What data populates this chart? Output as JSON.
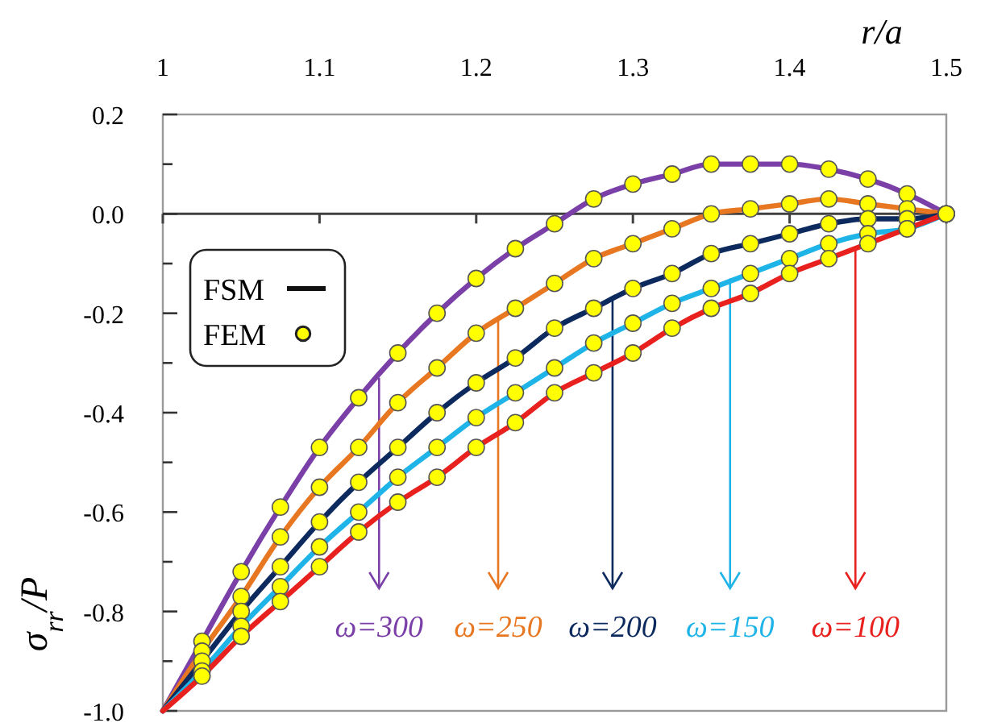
{
  "chart_data": {
    "type": "line",
    "xlabel": "r/a",
    "ylabel": "σ$_{rr}$/P",
    "xlim": [
      1,
      1.5
    ],
    "xticks": [
      1,
      1.1,
      1.2,
      1.3,
      1.4,
      1.5
    ],
    "ylim": [
      -1.0,
      0.2
    ],
    "yticks": [
      {
        "value": -1.0,
        "label": "-1.0"
      },
      {
        "value": -0.9,
        "label": null
      },
      {
        "value": -0.8,
        "label": "-0.8"
      },
      {
        "value": -0.7,
        "label": null
      },
      {
        "value": -0.6,
        "label": "-0.6"
      },
      {
        "value": -0.5,
        "label": null
      },
      {
        "value": -0.4,
        "label": "-0.4"
      },
      {
        "value": -0.3,
        "label": null
      },
      {
        "value": -0.2,
        "label": "-0.2"
      },
      {
        "value": -0.1,
        "label": null
      },
      {
        "value": 0.0,
        "label": "0.0"
      },
      {
        "value": 0.1,
        "label": null
      },
      {
        "value": 0.2,
        "label": "0.2"
      }
    ],
    "grid": false,
    "legend": "top left",
    "marker": "none",
    "line_style": "solid",
    "ref_lines": [
      {
        "axis": "y",
        "value": 0,
        "color": "#404040"
      }
    ],
    "x": [
      1,
      1.025,
      1.05,
      1.075,
      1.1,
      1.125,
      1.15,
      1.175,
      1.2,
      1.225,
      1.25,
      1.275,
      1.3,
      1.325,
      1.35,
      1.375,
      1.4,
      1.425,
      1.45,
      1.475,
      1.5
    ],
    "series": [
      {
        "color": "#7b3fa8",
        "values": [
          -1.0,
          -0.86,
          -0.72,
          -0.59,
          -0.47,
          -0.37,
          -0.28,
          -0.2,
          -0.13,
          -0.07,
          -0.02,
          0.03,
          0.06,
          0.08,
          0.1,
          0.1,
          0.1,
          0.09,
          0.07,
          0.04,
          0
        ]
      },
      {
        "color": "#e87722",
        "values": [
          -1.0,
          -0.88,
          -0.77,
          -0.65,
          -0.55,
          -0.47,
          -0.38,
          -0.31,
          -0.24,
          -0.19,
          -0.14,
          -0.09,
          -0.06,
          -0.03,
          0.0,
          0.01,
          0.02,
          0.03,
          0.02,
          0.01,
          0
        ]
      },
      {
        "color": "#0d2a5e",
        "values": [
          -1.0,
          -0.9,
          -0.8,
          -0.71,
          -0.62,
          -0.54,
          -0.47,
          -0.4,
          -0.34,
          -0.29,
          -0.23,
          -0.19,
          -0.15,
          -0.12,
          -0.08,
          -0.06,
          -0.04,
          -0.02,
          -0.01,
          -0.01,
          0
        ]
      },
      {
        "color": "#1fb4e8",
        "values": [
          -1.0,
          -0.92,
          -0.83,
          -0.75,
          -0.67,
          -0.6,
          -0.53,
          -0.47,
          -0.41,
          -0.36,
          -0.31,
          -0.26,
          -0.22,
          -0.18,
          -0.15,
          -0.12,
          -0.09,
          -0.06,
          -0.04,
          -0.03,
          0
        ]
      },
      {
        "color": "#e8201e",
        "values": [
          -1.0,
          -0.93,
          -0.85,
          -0.78,
          -0.71,
          -0.64,
          -0.58,
          -0.53,
          -0.47,
          -0.42,
          -0.36,
          -0.32,
          -0.28,
          -0.23,
          -0.19,
          -0.16,
          -0.12,
          -0.09,
          -0.06,
          -0.03,
          0
        ]
      },
      {
        "type": "scatter",
        "name": "FEM",
        "color": "#ffff00",
        "marker": "circle",
        "x": [
          1.025,
          1.05,
          1.075,
          1.1,
          1.125,
          1.15,
          1.175,
          1.2,
          1.225,
          1.25,
          1.275,
          1.3,
          1.325,
          1.35,
          1.375,
          1.4,
          1.425,
          1.45,
          1.475,
          1.5,
          1.025,
          1.05,
          1.075,
          1.1,
          1.125,
          1.15,
          1.175,
          1.2,
          1.225,
          1.25,
          1.275,
          1.3,
          1.325,
          1.35,
          1.375,
          1.4,
          1.425,
          1.45,
          1.475,
          1.5,
          1.025,
          1.05,
          1.075,
          1.1,
          1.125,
          1.15,
          1.175,
          1.2,
          1.225,
          1.25,
          1.275,
          1.3,
          1.325,
          1.35,
          1.375,
          1.4,
          1.425,
          1.45,
          1.475,
          1.5,
          1.025,
          1.05,
          1.075,
          1.1,
          1.125,
          1.15,
          1.175,
          1.2,
          1.225,
          1.25,
          1.275,
          1.3,
          1.325,
          1.35,
          1.375,
          1.4,
          1.425,
          1.45,
          1.475,
          1.5,
          1.025,
          1.05,
          1.075,
          1.1,
          1.125,
          1.15,
          1.175,
          1.2,
          1.225,
          1.25,
          1.275,
          1.3,
          1.325,
          1.35,
          1.375,
          1.4,
          1.425,
          1.45,
          1.475,
          1.5
        ],
        "values": [
          -0.86,
          -0.72,
          -0.59,
          -0.47,
          -0.37,
          -0.28,
          -0.2,
          -0.13,
          -0.07,
          -0.02,
          0.03,
          0.06,
          0.08,
          0.1,
          0.1,
          0.1,
          0.09,
          0.07,
          0.04,
          0,
          -0.88,
          -0.77,
          -0.65,
          -0.55,
          -0.47,
          -0.38,
          -0.31,
          -0.24,
          -0.19,
          -0.14,
          -0.09,
          -0.06,
          -0.03,
          0.0,
          0.01,
          0.02,
          0.03,
          0.02,
          0.01,
          0,
          -0.9,
          -0.8,
          -0.71,
          -0.62,
          -0.54,
          -0.47,
          -0.4,
          -0.34,
          -0.29,
          -0.23,
          -0.19,
          -0.15,
          -0.12,
          -0.08,
          -0.06,
          -0.04,
          -0.02,
          -0.01,
          -0.01,
          0,
          -0.92,
          -0.83,
          -0.75,
          -0.67,
          -0.6,
          -0.53,
          -0.47,
          -0.41,
          -0.36,
          -0.31,
          -0.26,
          -0.22,
          -0.18,
          -0.15,
          -0.12,
          -0.09,
          -0.06,
          -0.04,
          -0.03,
          0,
          -0.93,
          -0.85,
          -0.78,
          -0.71,
          -0.64,
          -0.58,
          -0.53,
          -0.47,
          -0.42,
          -0.36,
          -0.32,
          -0.28,
          -0.23,
          -0.19,
          -0.16,
          -0.12,
          -0.09,
          -0.06,
          -0.03,
          0
        ]
      }
    ],
    "annotations": [
      {
        "text": "ω=300",
        "x": 1.138,
        "y": -0.33
      },
      {
        "text": "ω=250",
        "x": 1.214,
        "y": -0.21
      },
      {
        "text": "ω=200",
        "x": 1.287,
        "y": -0.17
      },
      {
        "text": "ω=150",
        "x": 1.362,
        "y": -0.13
      },
      {
        "text": "ω=100",
        "x": 1.442,
        "y": -0.07
      },
      "FSM"
    ]
  }
}
